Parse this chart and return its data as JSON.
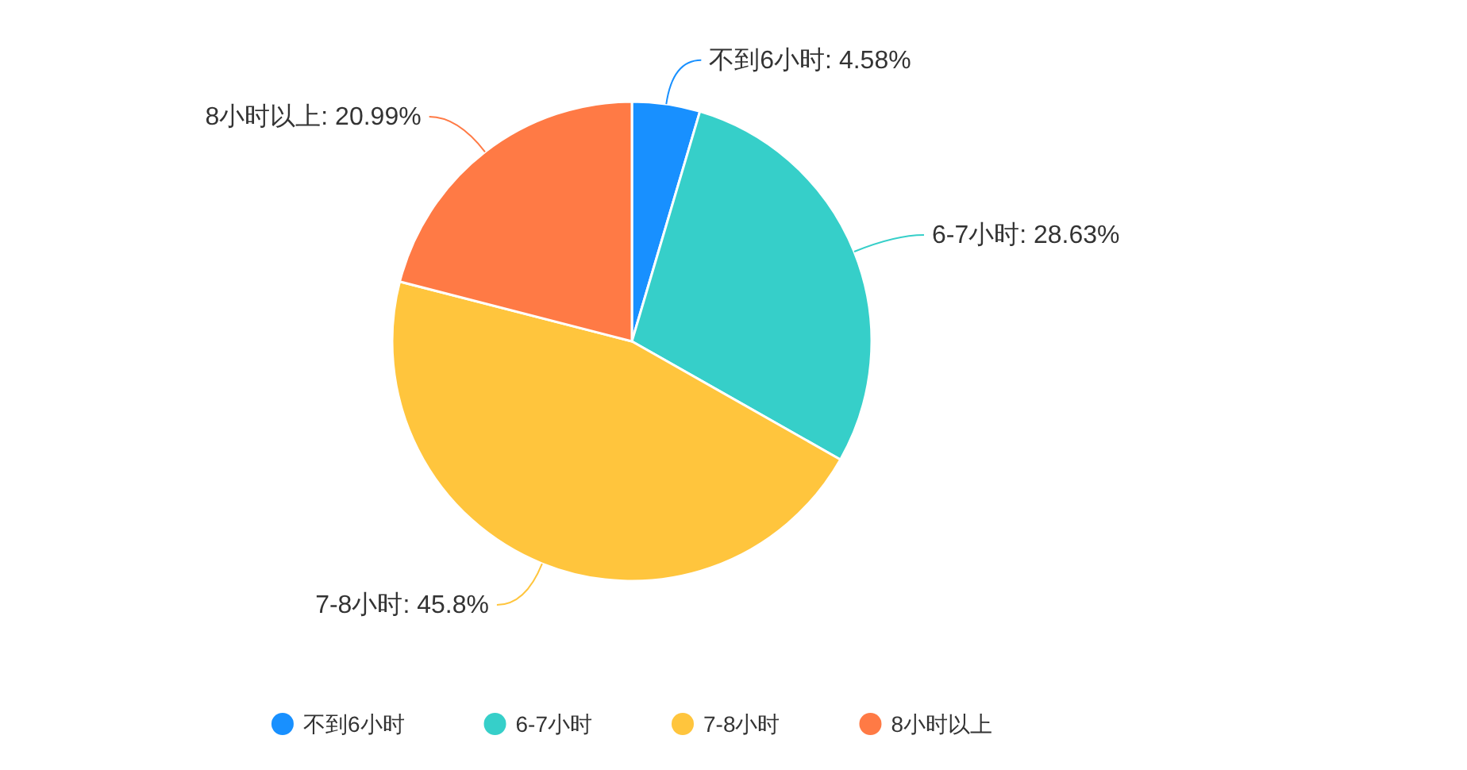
{
  "chart_data": {
    "type": "pie",
    "categories": [
      "不到6小时",
      "6-7小时",
      "7-8小时",
      "8小时以上"
    ],
    "values": [
      4.58,
      28.63,
      45.8,
      20.99
    ],
    "value_labels": [
      "不到6小时: 4.58%",
      "6-7小时: 28.63%",
      "7-8小时: 45.8%",
      "8小时以上: 20.99%"
    ],
    "colors": [
      "#1890ff",
      "#36cfc9",
      "#ffc53d",
      "#ff7a45"
    ],
    "legend": "bottom"
  }
}
